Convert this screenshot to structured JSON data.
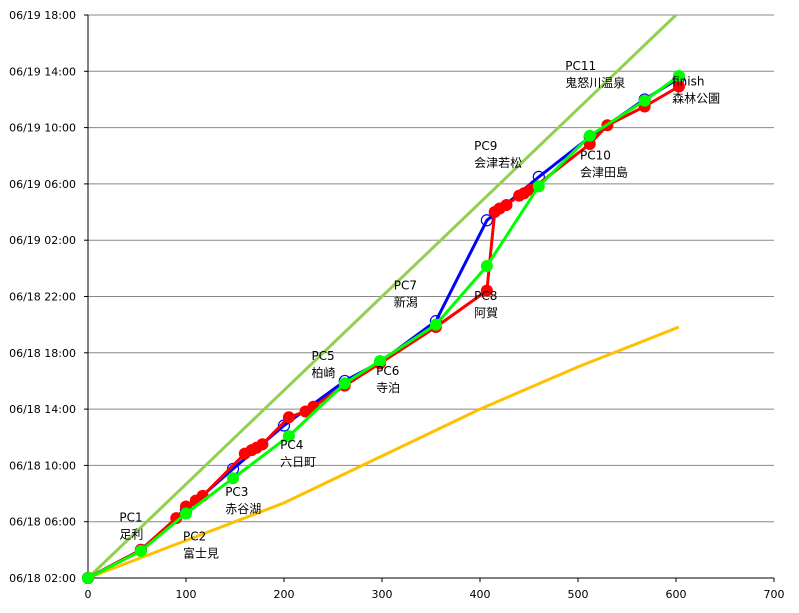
{
  "chart_data": {
    "type": "line",
    "title": "",
    "xlabel": "",
    "ylabel": "",
    "xlim": [
      0,
      700
    ],
    "xticks": [
      0,
      100,
      200,
      300,
      400,
      500,
      600,
      700
    ],
    "ylim": [
      "06/18 02:00",
      "06/19 18:00"
    ],
    "yticks": [
      "06/18 02:00",
      "06/18 06:00",
      "06/18 10:00",
      "06/18 14:00",
      "06/18 18:00",
      "06/18 22:00",
      "06/19 02:00",
      "06/19 06:00",
      "06/19 10:00",
      "06/19 14:00",
      "06/19 18:00"
    ],
    "grid": "horizontal",
    "legend": "none",
    "series": [
      {
        "color": "#92D050",
        "style": "line",
        "points": [
          [
            "0",
            "06/18 02:00"
          ],
          [
            "600",
            "06/19 18:00"
          ]
        ]
      },
      {
        "color": "#FFC000",
        "style": "line",
        "points": [
          [
            "0",
            "06/18 02:00"
          ],
          [
            "100",
            "06/18 04:40"
          ],
          [
            "200",
            "06/18 07:20"
          ],
          [
            "300",
            "06/18 10:40"
          ],
          [
            "400",
            "06/18 14:00"
          ],
          [
            "500",
            "06/18 17:00"
          ],
          [
            "603",
            "06/18 19:50"
          ]
        ]
      },
      {
        "color": "#0000FF",
        "style": "line-open-circles",
        "points": [
          [
            "0",
            "06/18 02:00"
          ],
          [
            "54",
            "06/18 04:00"
          ],
          [
            "100",
            "06/18 06:50"
          ],
          [
            "148",
            "06/18 09:45"
          ],
          [
            "200",
            "06/18 12:50"
          ],
          [
            "262",
            "06/18 16:00"
          ],
          [
            "298",
            "06/18 17:20"
          ],
          [
            "355",
            "06/18 20:15"
          ],
          [
            "407",
            "06/19 03:25"
          ],
          [
            "460",
            "06/19 06:30"
          ],
          [
            "512",
            "06/19 09:20"
          ],
          [
            "568",
            "06/19 12:00"
          ],
          [
            "603",
            "06/19 13:30"
          ]
        ]
      },
      {
        "color": "#FF0000",
        "style": "line-filled-circles",
        "points": [
          [
            "0",
            "06/18 02:00"
          ],
          [
            "54",
            "06/18 04:00"
          ],
          [
            "90",
            "06/18 06:15"
          ],
          [
            "100",
            "06/18 07:05"
          ],
          [
            "110",
            "06/18 07:30"
          ],
          [
            "117",
            "06/18 07:50"
          ],
          [
            "160",
            "06/18 10:50"
          ],
          [
            "167",
            "06/18 11:05"
          ],
          [
            "172",
            "06/18 11:15"
          ],
          [
            "178",
            "06/18 11:30"
          ],
          [
            "205",
            "06/18 13:25"
          ],
          [
            "222",
            "06/18 13:50"
          ],
          [
            "230",
            "06/18 14:10"
          ],
          [
            "262",
            "06/18 15:40"
          ],
          [
            "298",
            "06/18 17:15"
          ],
          [
            "355",
            "06/18 19:50"
          ],
          [
            "407",
            "06/18 22:25"
          ],
          [
            "415",
            "06/19 04:00"
          ],
          [
            "420",
            "06/19 04:15"
          ],
          [
            "427",
            "06/19 04:30"
          ],
          [
            "440",
            "06/19 05:10"
          ],
          [
            "445",
            "06/19 05:20"
          ],
          [
            "452",
            "06/19 05:35"
          ],
          [
            "512",
            "06/19 08:50"
          ],
          [
            "530",
            "06/19 10:10"
          ],
          [
            "568",
            "06/19 11:30"
          ],
          [
            "603",
            "06/19 12:55"
          ]
        ]
      },
      {
        "color": "#00FF00",
        "style": "line-filled-circles",
        "points": [
          [
            "0",
            "06/18 02:00"
          ],
          [
            "54",
            "06/18 03:55"
          ],
          [
            "100",
            "06/18 06:35"
          ],
          [
            "148",
            "06/18 09:05"
          ],
          [
            "205",
            "06/18 12:05"
          ],
          [
            "262",
            "06/18 15:50"
          ],
          [
            "298",
            "06/18 17:25"
          ],
          [
            "355",
            "06/18 20:00"
          ],
          [
            "407",
            "06/19 00:10"
          ],
          [
            "460",
            "06/19 05:50"
          ],
          [
            "512",
            "06/19 09:25"
          ],
          [
            "568",
            "06/19 11:55"
          ],
          [
            "603",
            "06/19 13:40"
          ]
        ]
      }
    ],
    "annotations": [
      {
        "lines": [
          "PC1",
          "足利"
        ],
        "x": "32",
        "y": "06/18 06:00"
      },
      {
        "lines": [
          "PC2",
          "富士見"
        ],
        "x": "97",
        "y": "06/18 04:40"
      },
      {
        "lines": [
          "PC3",
          "赤谷湖"
        ],
        "x": "140",
        "y": "06/18 07:50"
      },
      {
        "lines": [
          "PC4",
          "六日町"
        ],
        "x": "196",
        "y": "06/18 11:10"
      },
      {
        "lines": [
          "PC5",
          "柏崎"
        ],
        "x": "228",
        "y": "06/18 17:30"
      },
      {
        "lines": [
          "PC6",
          "寺泊"
        ],
        "x": "294",
        "y": "06/18 16:25"
      },
      {
        "lines": [
          "PC7",
          "新潟"
        ],
        "x": "312",
        "y": "06/18 22:30"
      },
      {
        "lines": [
          "PC8",
          "阿賀"
        ],
        "x": "394",
        "y": "06/18 21:45"
      },
      {
        "lines": [
          "PC9",
          "会津若松"
        ],
        "x": "394",
        "y": "06/19 08:25"
      },
      {
        "lines": [
          "PC10",
          "会津田島"
        ],
        "x": "502",
        "y": "06/19 07:45"
      },
      {
        "lines": [
          "PC11",
          "鬼怒川温泉"
        ],
        "x": "487",
        "y": "06/19 14:05"
      },
      {
        "lines": [
          "finish",
          "森林公園"
        ],
        "x": "596",
        "y": "06/19 13:00"
      }
    ]
  }
}
